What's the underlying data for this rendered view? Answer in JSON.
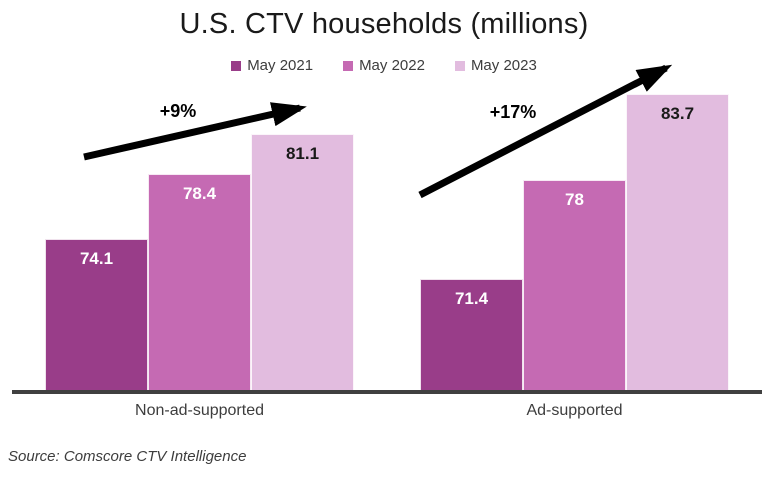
{
  "title": "U.S. CTV households (millions)",
  "source": "Source: Comscore CTV Intelligence",
  "colors": {
    "may2021": "#993d89",
    "may2022": "#c56ab3",
    "may2023": "#e2bcdf",
    "axis": "#404040",
    "arrow": "#000000",
    "title_text": "#1a1a1a",
    "body_text": "#3d3d3d"
  },
  "chart_data": {
    "type": "bar",
    "title": "U.S. CTV households (millions)",
    "categories": [
      "Non-ad-supported",
      "Ad-supported"
    ],
    "series": [
      {
        "name": "May 2021",
        "color": "#993d89",
        "label_color": "#ffffff",
        "values": [
          74.1,
          71.4
        ]
      },
      {
        "name": "May 2022",
        "color": "#c56ab3",
        "label_color": "#ffffff",
        "values": [
          78.4,
          78
        ]
      },
      {
        "name": "May 2023",
        "color": "#e2bcdf",
        "label_color": "#1a1a1a",
        "values": [
          81.1,
          83.7
        ]
      }
    ],
    "annotations": [
      {
        "text": "+9%",
        "category": "Non-ad-supported"
      },
      {
        "text": "+17%",
        "category": "Ad-supported"
      }
    ],
    "value_axis": {
      "min": 64,
      "max": 86,
      "visible": false
    },
    "grid": false,
    "legend_position": "top",
    "data_labels": true
  }
}
